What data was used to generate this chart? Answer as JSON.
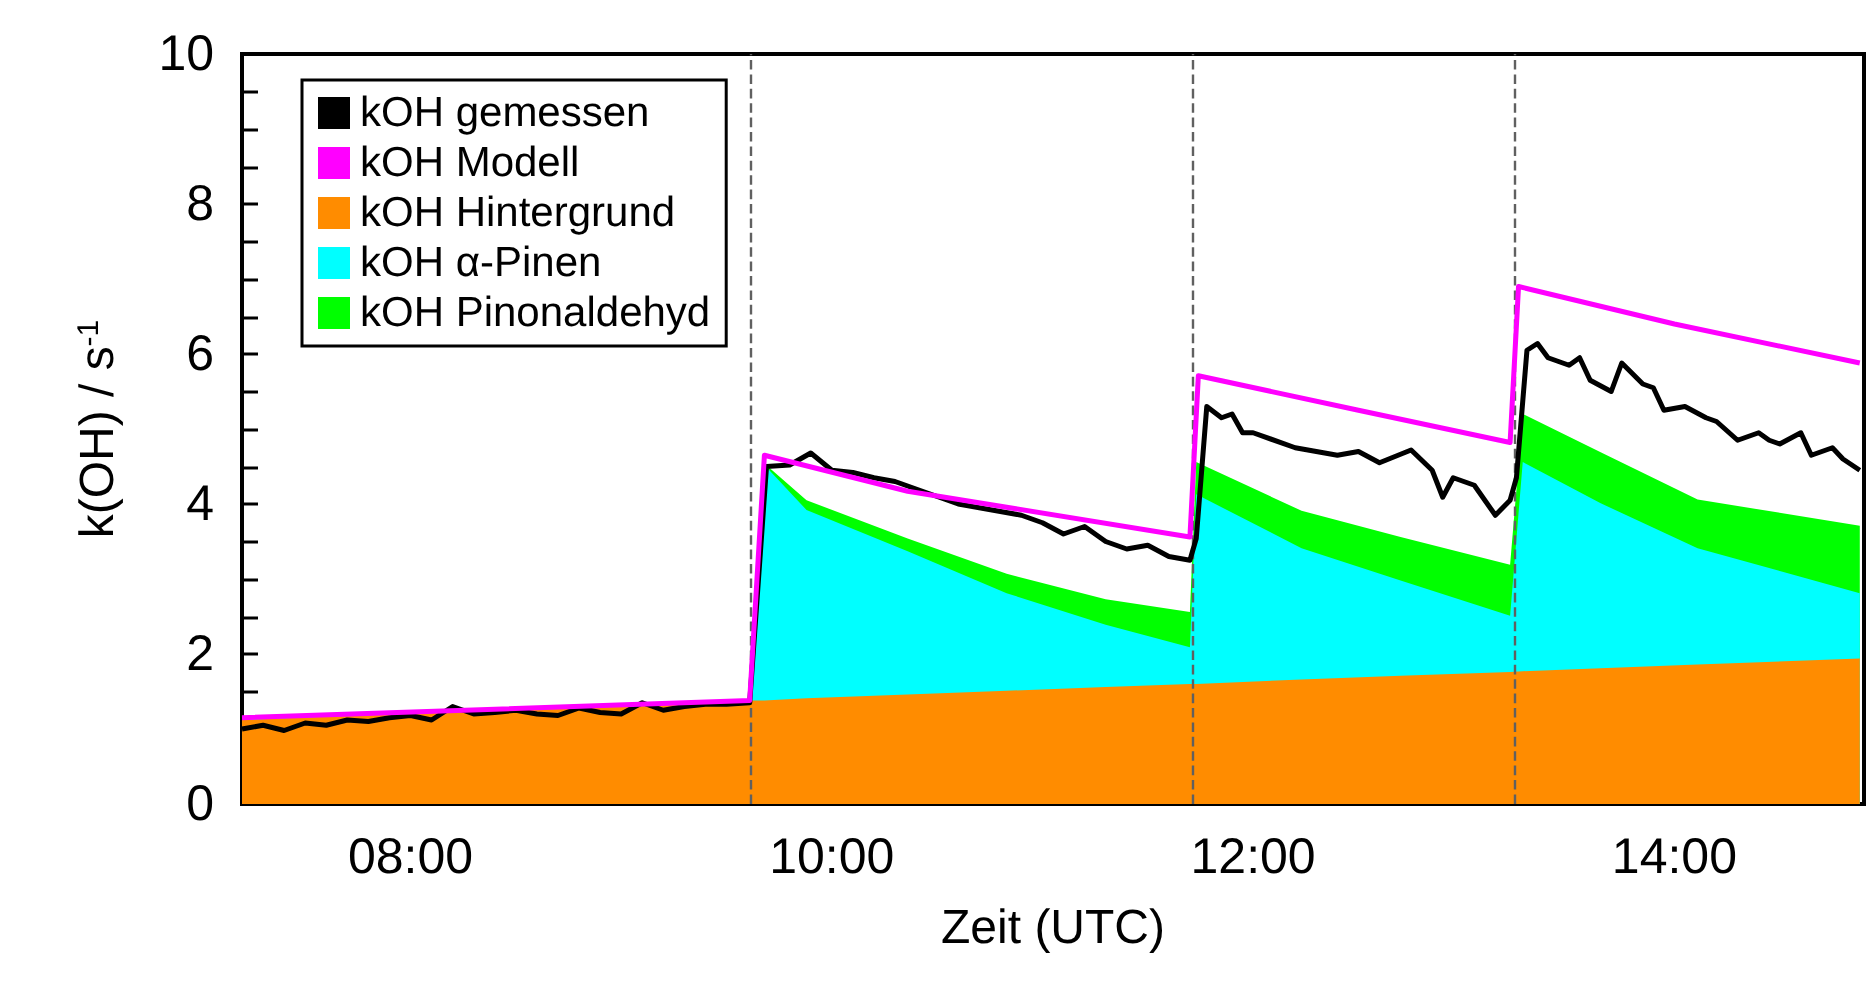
{
  "chart_data": {
    "type": "area",
    "xlabel": "Zeit (UTC)",
    "ylabel": "k(OH) / s$^{-1}$",
    "stacked": true,
    "grid": false,
    "legend": "top left",
    "marker": "none",
    "xlim": [
      7.2,
      14.9
    ],
    "ylim": [
      0,
      10
    ],
    "xticks": [
      {
        "value": 7.5,
        "label": null
      },
      {
        "value": 8,
        "label": "08:00"
      },
      {
        "value": 8.5,
        "label": null
      },
      {
        "value": 9,
        "label": null
      },
      {
        "value": 9.5,
        "label": null
      },
      {
        "value": 10,
        "label": "10:00"
      },
      {
        "value": 10.5,
        "label": null
      },
      {
        "value": 11,
        "label": null
      },
      {
        "value": 11.5,
        "label": null
      },
      {
        "value": 12,
        "label": "12:00"
      },
      {
        "value": 12.5,
        "label": null
      },
      {
        "value": 13,
        "label": null
      },
      {
        "value": 13.5,
        "label": null
      },
      {
        "value": 14,
        "label": "14:00"
      },
      {
        "value": 14.5,
        "label": null
      }
    ],
    "yticks": [
      0,
      {
        "value": 0.5,
        "label": null
      },
      {
        "value": 1,
        "label": null
      },
      {
        "value": 1.5,
        "label": null
      },
      2,
      {
        "value": 2.5,
        "label": null
      },
      {
        "value": 3,
        "label": null
      },
      {
        "value": 3.5,
        "label": null
      },
      4,
      {
        "value": 4.5,
        "label": null
      },
      {
        "value": 5,
        "label": null
      },
      {
        "value": 5.5,
        "label": null
      },
      6,
      {
        "value": 6.5,
        "label": null
      },
      {
        "value": 7,
        "label": null
      },
      {
        "value": 7.5,
        "label": null
      },
      8,
      {
        "value": 8.5,
        "label": null
      },
      {
        "value": 9,
        "label": null
      },
      {
        "value": 9.5,
        "label": null
      },
      10
    ],
    "x": [
      7.2,
      8,
      9,
      9.62,
      9.68,
      9.88,
      10.36,
      10.83,
      11.3,
      11.7,
      11.73,
      12.23,
      12.7,
      13.22,
      13.28,
      13.65,
      14.11,
      14.88
    ],
    "ref_lines": [
      {
        "axis": "x",
        "value": 9.61,
        "line_style": "dashed",
        "color": "#606060"
      },
      {
        "axis": "x",
        "value": 11.71,
        "line_style": "dashed",
        "color": "#606060"
      },
      {
        "axis": "x",
        "value": 13.24,
        "line_style": "dashed",
        "color": "#606060"
      }
    ],
    "series": [
      {
        "name": "kOH gemessen",
        "type": "line",
        "color": "#000000",
        "x": [
          7.2,
          7.3,
          7.4,
          7.5,
          7.6,
          7.7,
          7.8,
          7.9,
          8.0,
          8.1,
          8.2,
          8.3,
          8.4,
          8.5,
          8.6,
          8.7,
          8.8,
          8.9,
          9.0,
          9.1,
          9.2,
          9.3,
          9.4,
          9.5,
          9.61,
          9.69,
          9.8,
          9.9,
          10.0,
          10.1,
          10.2,
          10.3,
          10.4,
          10.5,
          10.6,
          10.7,
          10.8,
          10.9,
          11.0,
          11.1,
          11.2,
          11.3,
          11.4,
          11.5,
          11.6,
          11.7,
          11.73,
          11.78,
          11.85,
          11.9,
          11.95,
          12.0,
          12.2,
          12.4,
          12.5,
          12.6,
          12.75,
          12.85,
          12.9,
          12.95,
          13.05,
          13.15,
          13.22,
          13.25,
          13.3,
          13.35,
          13.4,
          13.5,
          13.55,
          13.6,
          13.7,
          13.75,
          13.85,
          13.9,
          13.95,
          14.05,
          14.15,
          14.2,
          14.3,
          14.4,
          14.45,
          14.5,
          14.6,
          14.65,
          14.75,
          14.8,
          14.88
        ],
        "values": [
          1.0,
          1.05,
          0.98,
          1.08,
          1.05,
          1.12,
          1.1,
          1.15,
          1.18,
          1.12,
          1.3,
          1.2,
          1.22,
          1.25,
          1.2,
          1.18,
          1.28,
          1.22,
          1.2,
          1.35,
          1.25,
          1.3,
          1.33,
          1.33,
          1.35,
          4.5,
          4.52,
          4.68,
          4.45,
          4.42,
          4.35,
          4.3,
          4.2,
          4.1,
          4.0,
          3.95,
          3.9,
          3.85,
          3.75,
          3.6,
          3.7,
          3.5,
          3.4,
          3.45,
          3.3,
          3.25,
          3.54,
          5.3,
          5.15,
          5.2,
          4.95,
          4.95,
          4.75,
          4.65,
          4.7,
          4.55,
          4.72,
          4.45,
          4.09,
          4.35,
          4.25,
          3.85,
          4.05,
          4.35,
          6.05,
          6.14,
          5.95,
          5.85,
          5.95,
          5.65,
          5.5,
          5.88,
          5.6,
          5.55,
          5.25,
          5.3,
          5.15,
          5.1,
          4.85,
          4.95,
          4.85,
          4.8,
          4.95,
          4.65,
          4.75,
          4.6,
          4.45
        ]
      },
      {
        "name": "kOH Modell",
        "type": "line",
        "color": "#ff00ff",
        "x": [
          7.2,
          9.61,
          9.68,
          10.36,
          11.7,
          11.74,
          12.5,
          13.22,
          13.26,
          14.0,
          14.88
        ],
        "values": [
          1.15,
          1.38,
          4.65,
          4.17,
          3.56,
          5.71,
          5.25,
          4.82,
          6.9,
          6.4,
          5.88
        ]
      },
      {
        "name": "kOH Hintergrund",
        "color": "#ff8c00",
        "values": [
          1.12,
          1.21,
          1.31,
          1.38,
          1.38,
          1.41,
          1.46,
          1.51,
          1.56,
          1.6,
          1.6,
          1.66,
          1.71,
          1.76,
          1.77,
          1.81,
          1.86,
          1.94
        ]
      },
      {
        "name": "kOH α-Pinen",
        "color": "#00ffff",
        "values": [
          0,
          0,
          0,
          0,
          3.14,
          2.51,
          1.91,
          1.3,
          0.83,
          0.49,
          2.53,
          1.75,
          1.27,
          0.75,
          2.79,
          2.2,
          1.55,
          0.87
        ]
      },
      {
        "name": "kOH Pinonaldehyd",
        "color": "#00ff00",
        "values": [
          0,
          0,
          0,
          0,
          0.02,
          0.13,
          0.17,
          0.26,
          0.34,
          0.47,
          0.43,
          0.5,
          0.58,
          0.68,
          0.64,
          0.68,
          0.65,
          0.9
        ]
      }
    ]
  }
}
